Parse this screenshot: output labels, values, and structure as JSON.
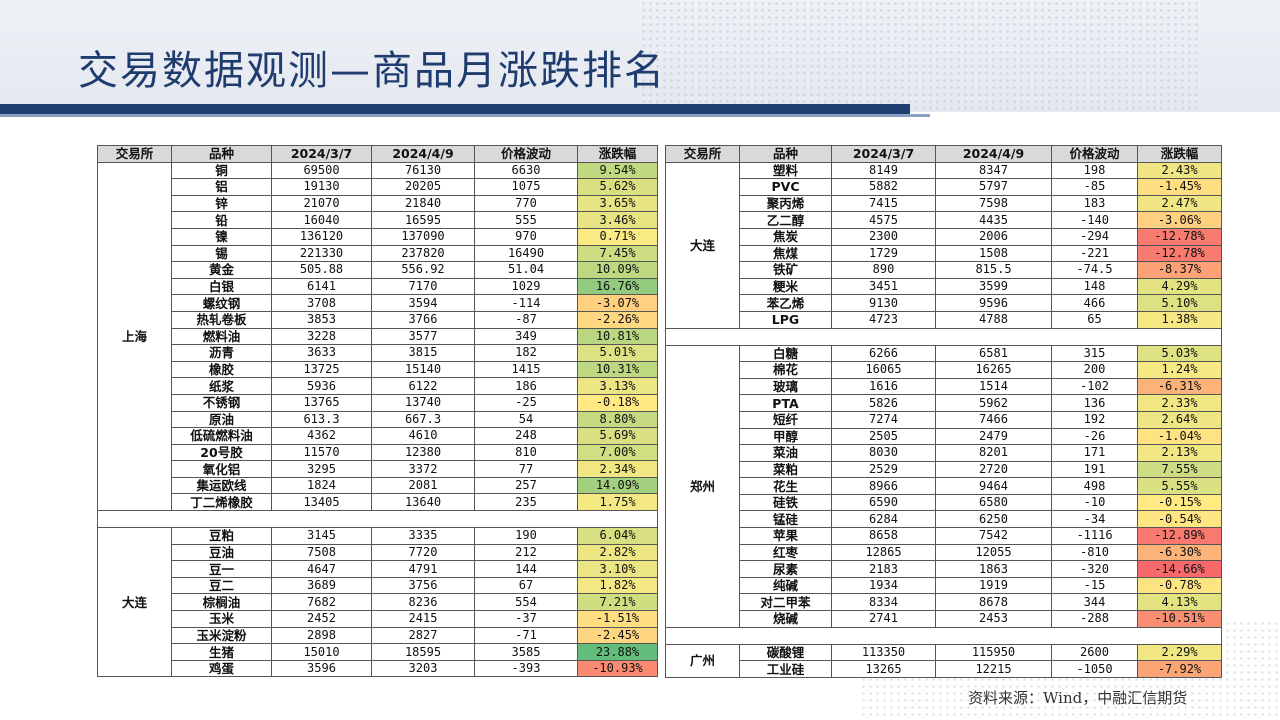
{
  "title": "交易数据观测—商品月涨跌排名",
  "source": "资料来源：Wind，中融汇信期货",
  "headers": [
    "交易所",
    "品种",
    "2024/3/7",
    "2024/4/9",
    "价格波动",
    "涨跌幅"
  ],
  "colors": {
    "header_bg": "#d9d9d9",
    "title": "#1f3c6e",
    "strong_down": "#f8696b",
    "neutral": "#ffeb84",
    "strong_up": "#63be7b"
  },
  "left_groups": [
    {
      "exchange": "上海",
      "rows": [
        {
          "name": "铜",
          "p1": "69500",
          "p2": "76130",
          "chg": "6630",
          "pct": "9.54%",
          "v": 9.54
        },
        {
          "name": "铝",
          "p1": "19130",
          "p2": "20205",
          "chg": "1075",
          "pct": "5.62%",
          "v": 5.62
        },
        {
          "name": "锌",
          "p1": "21070",
          "p2": "21840",
          "chg": "770",
          "pct": "3.65%",
          "v": 3.65
        },
        {
          "name": "铅",
          "p1": "16040",
          "p2": "16595",
          "chg": "555",
          "pct": "3.46%",
          "v": 3.46
        },
        {
          "name": "镍",
          "p1": "136120",
          "p2": "137090",
          "chg": "970",
          "pct": "0.71%",
          "v": 0.71
        },
        {
          "name": "锡",
          "p1": "221330",
          "p2": "237820",
          "chg": "16490",
          "pct": "7.45%",
          "v": 7.45
        },
        {
          "name": "黄金",
          "p1": "505.88",
          "p2": "556.92",
          "chg": "51.04",
          "pct": "10.09%",
          "v": 10.09
        },
        {
          "name": "白银",
          "p1": "6141",
          "p2": "7170",
          "chg": "1029",
          "pct": "16.76%",
          "v": 16.76
        },
        {
          "name": "螺纹钢",
          "p1": "3708",
          "p2": "3594",
          "chg": "-114",
          "pct": "-3.07%",
          "v": -3.07
        },
        {
          "name": "热轧卷板",
          "p1": "3853",
          "p2": "3766",
          "chg": "-87",
          "pct": "-2.26%",
          "v": -2.26
        },
        {
          "name": "燃料油",
          "p1": "3228",
          "p2": "3577",
          "chg": "349",
          "pct": "10.81%",
          "v": 10.81
        },
        {
          "name": "沥青",
          "p1": "3633",
          "p2": "3815",
          "chg": "182",
          "pct": "5.01%",
          "v": 5.01
        },
        {
          "name": "橡胶",
          "p1": "13725",
          "p2": "15140",
          "chg": "1415",
          "pct": "10.31%",
          "v": 10.31
        },
        {
          "name": "纸浆",
          "p1": "5936",
          "p2": "6122",
          "chg": "186",
          "pct": "3.13%",
          "v": 3.13
        },
        {
          "name": "不锈钢",
          "p1": "13765",
          "p2": "13740",
          "chg": "-25",
          "pct": "-0.18%",
          "v": -0.18
        },
        {
          "name": "原油",
          "p1": "613.3",
          "p2": "667.3",
          "chg": "54",
          "pct": "8.80%",
          "v": 8.8
        },
        {
          "name": "低硫燃料油",
          "p1": "4362",
          "p2": "4610",
          "chg": "248",
          "pct": "5.69%",
          "v": 5.69
        },
        {
          "name": "20号胶",
          "p1": "11570",
          "p2": "12380",
          "chg": "810",
          "pct": "7.00%",
          "v": 7.0
        },
        {
          "name": "氧化铝",
          "p1": "3295",
          "p2": "3372",
          "chg": "77",
          "pct": "2.34%",
          "v": 2.34
        },
        {
          "name": "集运欧线",
          "p1": "1824",
          "p2": "2081",
          "chg": "257",
          "pct": "14.09%",
          "v": 14.09
        },
        {
          "name": "丁二烯橡胶",
          "p1": "13405",
          "p2": "13640",
          "chg": "235",
          "pct": "1.75%",
          "v": 1.75
        }
      ]
    },
    {
      "exchange": "大连",
      "rows": [
        {
          "name": "豆粕",
          "p1": "3145",
          "p2": "3335",
          "chg": "190",
          "pct": "6.04%",
          "v": 6.04
        },
        {
          "name": "豆油",
          "p1": "7508",
          "p2": "7720",
          "chg": "212",
          "pct": "2.82%",
          "v": 2.82
        },
        {
          "name": "豆一",
          "p1": "4647",
          "p2": "4791",
          "chg": "144",
          "pct": "3.10%",
          "v": 3.1
        },
        {
          "name": "豆二",
          "p1": "3689",
          "p2": "3756",
          "chg": "67",
          "pct": "1.82%",
          "v": 1.82
        },
        {
          "name": "棕榈油",
          "p1": "7682",
          "p2": "8236",
          "chg": "554",
          "pct": "7.21%",
          "v": 7.21
        },
        {
          "name": "玉米",
          "p1": "2452",
          "p2": "2415",
          "chg": "-37",
          "pct": "-1.51%",
          "v": -1.51
        },
        {
          "name": "玉米淀粉",
          "p1": "2898",
          "p2": "2827",
          "chg": "-71",
          "pct": "-2.45%",
          "v": -2.45
        },
        {
          "name": "生猪",
          "p1": "15010",
          "p2": "18595",
          "chg": "3585",
          "pct": "23.88%",
          "v": 23.88
        },
        {
          "name": "鸡蛋",
          "p1": "3596",
          "p2": "3203",
          "chg": "-393",
          "pct": "-10.93%",
          "v": -10.93
        }
      ]
    }
  ],
  "right_groups": [
    {
      "exchange": "大连",
      "rows": [
        {
          "name": "塑料",
          "p1": "8149",
          "p2": "8347",
          "chg": "198",
          "pct": "2.43%",
          "v": 2.43
        },
        {
          "name": "PVC",
          "p1": "5882",
          "p2": "5797",
          "chg": "-85",
          "pct": "-1.45%",
          "v": -1.45
        },
        {
          "name": "聚丙烯",
          "p1": "7415",
          "p2": "7598",
          "chg": "183",
          "pct": "2.47%",
          "v": 2.47
        },
        {
          "name": "乙二醇",
          "p1": "4575",
          "p2": "4435",
          "chg": "-140",
          "pct": "-3.06%",
          "v": -3.06
        },
        {
          "name": "焦炭",
          "p1": "2300",
          "p2": "2006",
          "chg": "-294",
          "pct": "-12.78%",
          "v": -12.78
        },
        {
          "name": "焦煤",
          "p1": "1729",
          "p2": "1508",
          "chg": "-221",
          "pct": "-12.78%",
          "v": -12.78
        },
        {
          "name": "铁矿",
          "p1": "890",
          "p2": "815.5",
          "chg": "-74.5",
          "pct": "-8.37%",
          "v": -8.37
        },
        {
          "name": "粳米",
          "p1": "3451",
          "p2": "3599",
          "chg": "148",
          "pct": "4.29%",
          "v": 4.29
        },
        {
          "name": "苯乙烯",
          "p1": "9130",
          "p2": "9596",
          "chg": "466",
          "pct": "5.10%",
          "v": 5.1
        },
        {
          "name": "LPG",
          "p1": "4723",
          "p2": "4788",
          "chg": "65",
          "pct": "1.38%",
          "v": 1.38
        }
      ]
    },
    {
      "exchange": "郑州",
      "rows": [
        {
          "name": "白糖",
          "p1": "6266",
          "p2": "6581",
          "chg": "315",
          "pct": "5.03%",
          "v": 5.03
        },
        {
          "name": "棉花",
          "p1": "16065",
          "p2": "16265",
          "chg": "200",
          "pct": "1.24%",
          "v": 1.24
        },
        {
          "name": "玻璃",
          "p1": "1616",
          "p2": "1514",
          "chg": "-102",
          "pct": "-6.31%",
          "v": -6.31
        },
        {
          "name": "PTA",
          "p1": "5826",
          "p2": "5962",
          "chg": "136",
          "pct": "2.33%",
          "v": 2.33
        },
        {
          "name": "短纤",
          "p1": "7274",
          "p2": "7466",
          "chg": "192",
          "pct": "2.64%",
          "v": 2.64
        },
        {
          "name": "甲醇",
          "p1": "2505",
          "p2": "2479",
          "chg": "-26",
          "pct": "-1.04%",
          "v": -1.04
        },
        {
          "name": "菜油",
          "p1": "8030",
          "p2": "8201",
          "chg": "171",
          "pct": "2.13%",
          "v": 2.13
        },
        {
          "name": "菜粕",
          "p1": "2529",
          "p2": "2720",
          "chg": "191",
          "pct": "7.55%",
          "v": 7.55
        },
        {
          "name": "花生",
          "p1": "8966",
          "p2": "9464",
          "chg": "498",
          "pct": "5.55%",
          "v": 5.55
        },
        {
          "name": "硅铁",
          "p1": "6590",
          "p2": "6580",
          "chg": "-10",
          "pct": "-0.15%",
          "v": -0.15
        },
        {
          "name": "锰硅",
          "p1": "6284",
          "p2": "6250",
          "chg": "-34",
          "pct": "-0.54%",
          "v": -0.54
        },
        {
          "name": "苹果",
          "p1": "8658",
          "p2": "7542",
          "chg": "-1116",
          "pct": "-12.89%",
          "v": -12.89
        },
        {
          "name": "红枣",
          "p1": "12865",
          "p2": "12055",
          "chg": "-810",
          "pct": "-6.30%",
          "v": -6.3
        },
        {
          "name": "尿素",
          "p1": "2183",
          "p2": "1863",
          "chg": "-320",
          "pct": "-14.66%",
          "v": -14.66
        },
        {
          "name": "纯碱",
          "p1": "1934",
          "p2": "1919",
          "chg": "-15",
          "pct": "-0.78%",
          "v": -0.78
        },
        {
          "name": "对二甲苯",
          "p1": "8334",
          "p2": "8678",
          "chg": "344",
          "pct": "4.13%",
          "v": 4.13
        },
        {
          "name": "烧碱",
          "p1": "2741",
          "p2": "2453",
          "chg": "-288",
          "pct": "-10.51%",
          "v": -10.51
        }
      ]
    },
    {
      "exchange": "广州",
      "rows": [
        {
          "name": "碳酸锂",
          "p1": "113350",
          "p2": "115950",
          "chg": "2600",
          "pct": "2.29%",
          "v": 2.29
        },
        {
          "name": "工业硅",
          "p1": "13265",
          "p2": "12215",
          "chg": "-1050",
          "pct": "-7.92%",
          "v": -7.92
        }
      ]
    }
  ]
}
